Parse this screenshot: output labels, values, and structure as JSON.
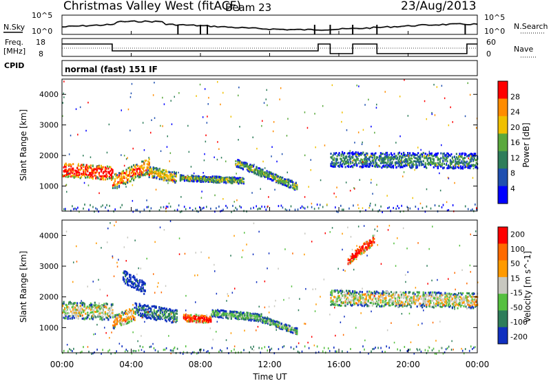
{
  "header": {
    "station": "Christmas Valley West (fitACF)",
    "beam": "Beam 23",
    "date": "23/Aug/2013"
  },
  "noise_panel": {
    "left_label": "N.Sky",
    "right_label": "N.Search",
    "left_ticks": [
      "10^5",
      "10^0"
    ],
    "right_ticks": [
      "10^5",
      "10^0"
    ]
  },
  "freq_panel": {
    "left_label_line1": "Freq.",
    "left_label_line2": "[MHz]",
    "right_label": "Nave",
    "left_ticks": [
      "18",
      "8"
    ],
    "right_ticks": [
      "60",
      "0"
    ]
  },
  "cpid": {
    "label": "CPID",
    "mode": "normal (fast) 151 IF"
  },
  "x_axis": {
    "label": "Time UT",
    "ticks": [
      "00:00",
      "04:00",
      "08:00",
      "12:00",
      "16:00",
      "20:00",
      "00:00"
    ]
  },
  "chart_data": [
    {
      "type": "heatmap",
      "quantity": "power",
      "ylabel": "Slant Range [km]",
      "yticks": [
        "1000",
        "2000",
        "3000",
        "4000"
      ],
      "ylim": [
        180,
        4500
      ],
      "xlim_hours": [
        0,
        24
      ],
      "colorbar_label": "Power [dB]",
      "colorbar_ticks": [
        "4",
        "8",
        "12",
        "16",
        "20",
        "24",
        "28"
      ],
      "colors": [
        "#0000ff",
        "#1f4fb0",
        "#2e7d5a",
        "#5aa83c",
        "#f0c000",
        "#ff8c00",
        "#ff0000"
      ],
      "bands": [
        {
          "t0": 0.0,
          "t1": 2.9,
          "r_center_start": 1550,
          "r_center_end": 1450,
          "width": 450,
          "level": 6
        },
        {
          "t0": 2.9,
          "t1": 5.0,
          "r_center_start": 1150,
          "r_center_end": 1700,
          "width": 500,
          "level": 5
        },
        {
          "t0": 5.0,
          "t1": 6.6,
          "r_center_start": 1500,
          "r_center_end": 1300,
          "width": 350,
          "level": 4
        },
        {
          "t0": 6.8,
          "t1": 10.5,
          "r_center_start": 1300,
          "r_center_end": 1200,
          "width": 200,
          "level": 3
        },
        {
          "t0": 10.0,
          "t1": 13.6,
          "r_center_start": 1800,
          "r_center_end": 1000,
          "width": 250,
          "level": 3
        },
        {
          "t0": 15.5,
          "t1": 24.0,
          "r_center_start": 1900,
          "r_center_end": 1850,
          "width": 500,
          "level": 2
        }
      ]
    },
    {
      "type": "heatmap",
      "quantity": "velocity",
      "ylabel": "Slant Range [km]",
      "yticks": [
        "1000",
        "2000",
        "3000",
        "4000"
      ],
      "ylim": [
        180,
        4500
      ],
      "xlim_hours": [
        0,
        24
      ],
      "colorbar_label": "Velocity [m s^-1]",
      "colorbar_ticks": [
        "200",
        "100",
        "50",
        "15",
        "-15",
        "-50",
        "-100",
        "-200"
      ],
      "colors": [
        "#1030c0",
        "#2e7d5a",
        "#55c040",
        "#c8c8c0",
        "#ff9a00",
        "#ff6a00",
        "#ff0000"
      ],
      "bands": [
        {
          "t0": 0.0,
          "t1": 2.9,
          "r_center_start": 1600,
          "r_center_end": 1550,
          "width": 550,
          "level": 3
        },
        {
          "t0": 2.9,
          "t1": 4.2,
          "r_center_start": 1200,
          "r_center_end": 1500,
          "width": 450,
          "level": 4
        },
        {
          "t0": 3.5,
          "t1": 4.8,
          "r_center_start": 2700,
          "r_center_end": 2300,
          "width": 400,
          "level": 0
        },
        {
          "t0": 4.2,
          "t1": 6.6,
          "r_center_start": 1600,
          "r_center_end": 1400,
          "width": 450,
          "level": 1
        },
        {
          "t0": 7.0,
          "t1": 8.6,
          "r_center_start": 1350,
          "r_center_end": 1300,
          "width": 250,
          "level": 6
        },
        {
          "t0": 8.6,
          "t1": 11.5,
          "r_center_start": 1500,
          "r_center_end": 1350,
          "width": 250,
          "level": 2
        },
        {
          "t0": 11.5,
          "t1": 13.6,
          "r_center_start": 1300,
          "r_center_end": 900,
          "width": 200,
          "level": 2
        },
        {
          "t0": 16.5,
          "t1": 18.0,
          "r_center_start": 3200,
          "r_center_end": 3900,
          "width": 300,
          "level": 6
        },
        {
          "t0": 15.5,
          "t1": 24.0,
          "r_center_start": 2000,
          "r_center_end": 1900,
          "width": 500,
          "level": 3
        }
      ]
    }
  ]
}
